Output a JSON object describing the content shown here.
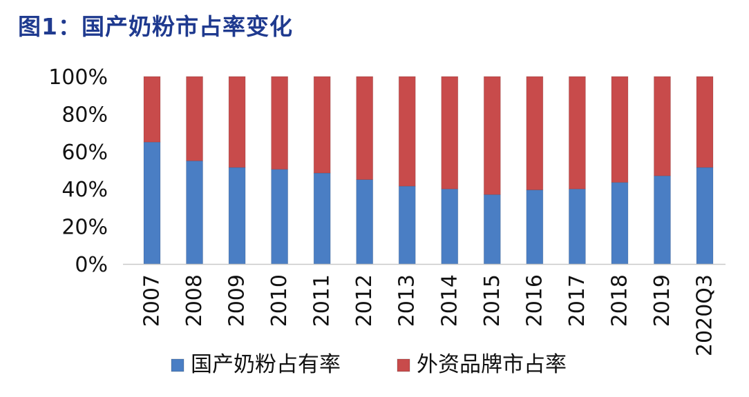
{
  "chart_data": {
    "type": "bar",
    "stacked": true,
    "title": "图1：国产奶粉市占率变化",
    "xlabel": "",
    "ylabel": "",
    "ylim": [
      0,
      100
    ],
    "y_tick_labels": [
      "0%",
      "20%",
      "40%",
      "60%",
      "80%",
      "100%"
    ],
    "y_tick_values": [
      0,
      20,
      40,
      60,
      80,
      100
    ],
    "grid": false,
    "legend_position": "bottom",
    "categories": [
      "2007",
      "2008",
      "2009",
      "2010",
      "2011",
      "2012",
      "2013",
      "2014",
      "2015",
      "2016",
      "2017",
      "2018",
      "2019",
      "2020Q3"
    ],
    "series": [
      {
        "name": "国产奶粉占有率",
        "color": "#4a7ec4",
        "values": [
          65,
          55,
          51.5,
          50.5,
          48.5,
          45,
          41.5,
          40,
          37,
          39.5,
          40,
          43.5,
          47,
          51.5
        ]
      },
      {
        "name": "外资品牌市占率",
        "color": "#c84b4b",
        "values": [
          35,
          45,
          48.5,
          49.5,
          51.5,
          55,
          58.5,
          60,
          63,
          60.5,
          60,
          56.5,
          53,
          48.5
        ]
      }
    ]
  }
}
